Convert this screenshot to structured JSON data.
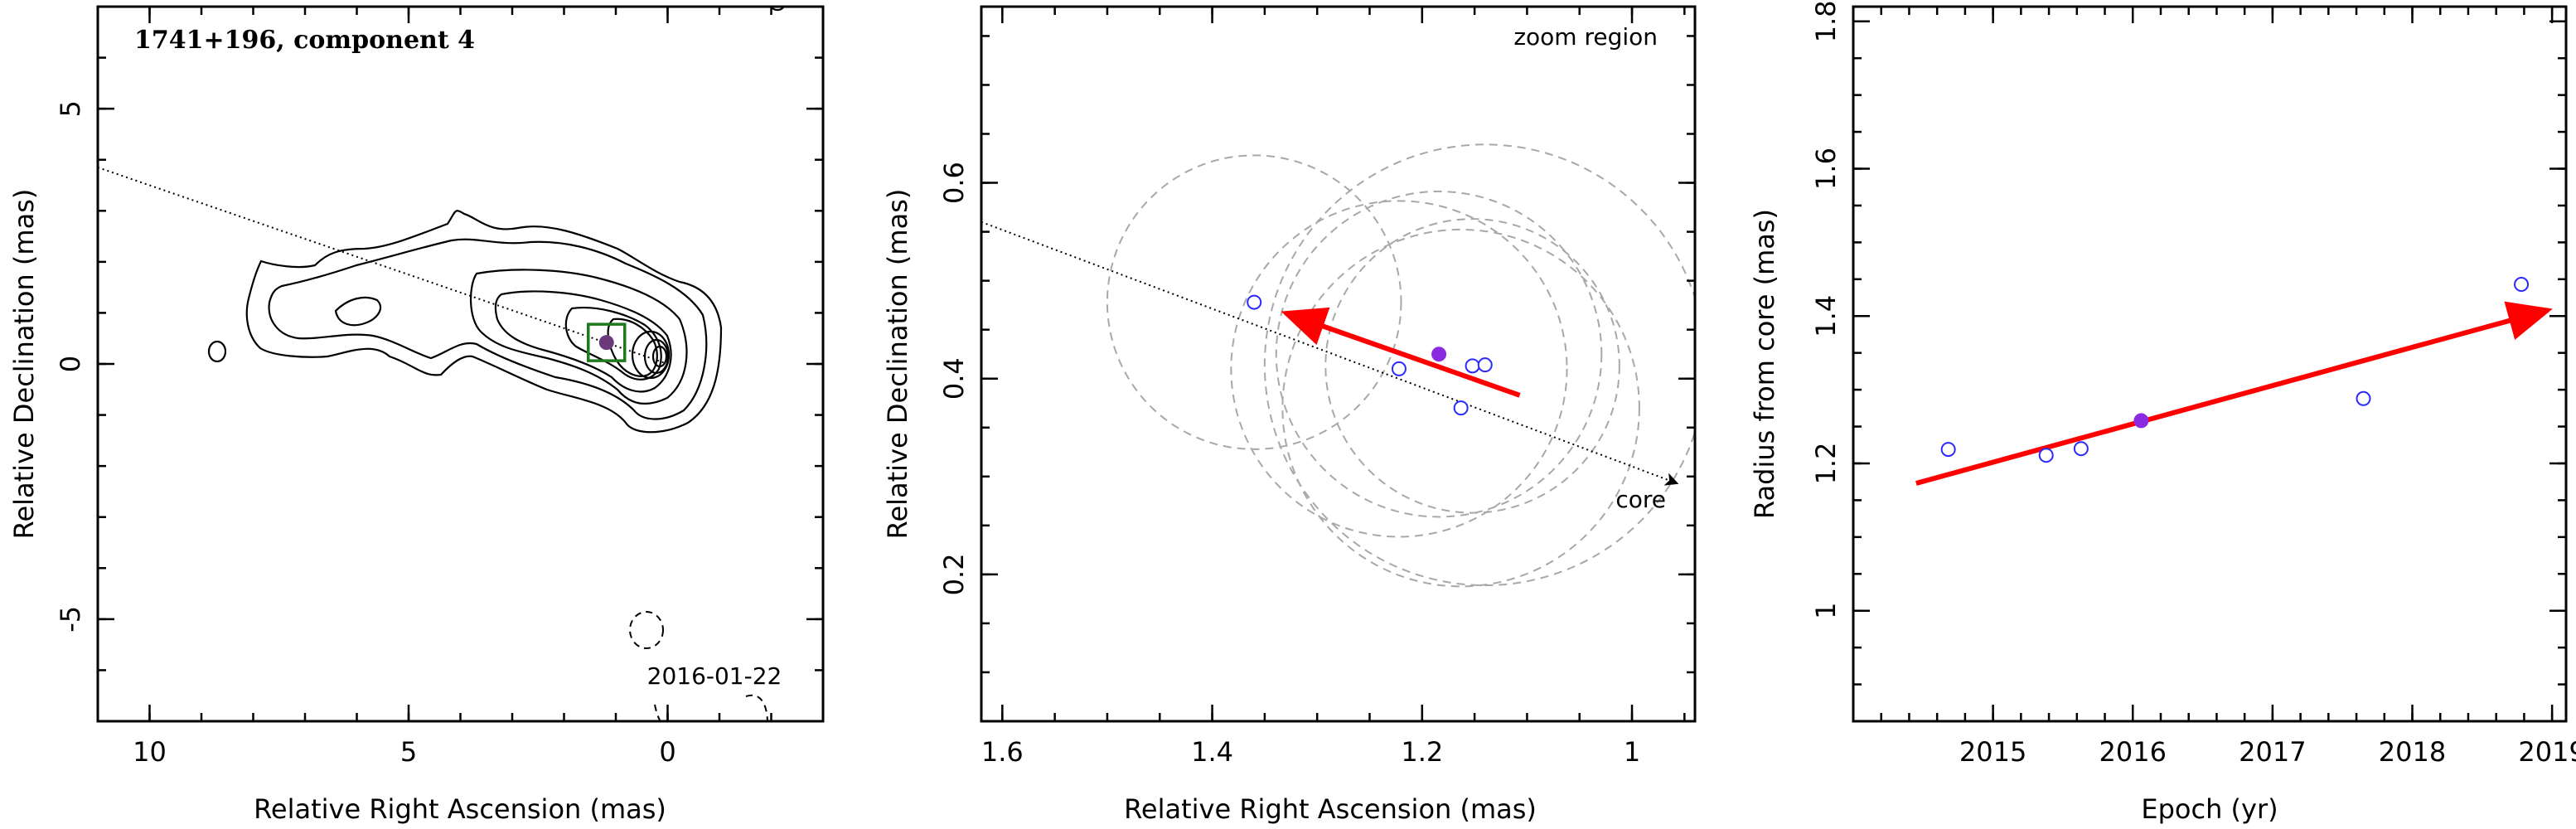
{
  "chart_data": [
    {
      "type": "contour",
      "title": "1741+196, component 4",
      "xlabel": "Relative Right Ascension (mas)",
      "ylabel": "Relative Declination (mas)",
      "xlim": [
        11.0,
        -3.0
      ],
      "ylim": [
        -7.0,
        7.0
      ],
      "x_ticks": [
        10,
        5,
        0
      ],
      "y_ticks": [
        5,
        0,
        -5
      ],
      "epoch_label": "2016-01-22",
      "component_position": {
        "x": 1.18,
        "y": 0.42
      },
      "ridge_line": {
        "x": [
          11.0,
          0.0
        ],
        "y": [
          3.85,
          0.0
        ]
      },
      "contours": [
        {
          "kind": "negative",
          "cx": -0.1,
          "cy": 0.0,
          "rx": 0.7,
          "ry": 0.6
        },
        {
          "kind": "positive",
          "cx": -0.1,
          "cy": 0.0,
          "rx": 0.35,
          "ry": 0.3
        }
      ]
    },
    {
      "type": "scatter",
      "annotation_top": "zoom region",
      "annotation_core": "core",
      "xlabel": "Relative Right Ascension (mas)",
      "ylabel": "Relative Declination (mas)",
      "xlim": [
        1.62,
        0.94
      ],
      "ylim": [
        0.05,
        0.78
      ],
      "x_ticks": [
        1.6,
        1.4,
        1.2,
        1.0
      ],
      "x_tick_labels": [
        "1.6",
        "1.4",
        "1.2",
        "1"
      ],
      "y_ticks": [
        0.6,
        0.4,
        0.2
      ],
      "y_tick_labels": [
        "0.6",
        "0.4",
        "0.2"
      ],
      "points_open": [
        {
          "x": 1.36,
          "y": 0.478
        },
        {
          "x": 1.222,
          "y": 0.41
        },
        {
          "x": 1.152,
          "y": 0.413
        },
        {
          "x": 1.14,
          "y": 0.414
        },
        {
          "x": 1.163,
          "y": 0.37
        }
      ],
      "point_filled": {
        "x": 1.184,
        "y": 0.425
      },
      "error_circles": [
        {
          "x": 1.36,
          "y": 0.478,
          "r": 0.14
        },
        {
          "x": 1.222,
          "y": 0.41,
          "r": 0.16
        },
        {
          "x": 1.152,
          "y": 0.413,
          "r": 0.14
        },
        {
          "x": 1.14,
          "y": 0.414,
          "r": 0.21
        },
        {
          "x": 1.163,
          "y": 0.37,
          "r": 0.17
        },
        {
          "x": 1.184,
          "y": 0.425,
          "r": 0.155
        }
      ],
      "ridge_line": {
        "x": [
          1.62,
          0.957
        ],
        "y": [
          0.56,
          0.293
        ]
      },
      "motion_arrow": {
        "x_start": 1.107,
        "y_start": 0.383,
        "x_end": 1.33,
        "y_end": 0.467
      }
    },
    {
      "type": "scatter",
      "xlabel": "Epoch (yr)",
      "ylabel": "Radius from core (mas)",
      "xlim": [
        2014.0,
        2019.1
      ],
      "ylim": [
        0.85,
        1.82
      ],
      "x_ticks": [
        2015,
        2016,
        2017,
        2018,
        2019
      ],
      "y_ticks": [
        1.0,
        1.2,
        1.4,
        1.6,
        1.8
      ],
      "y_tick_labels": [
        "1",
        "1.2",
        "1.4",
        "1.6",
        "1.8"
      ],
      "points_open": [
        {
          "x": 2014.68,
          "y": 1.219
        },
        {
          "x": 2015.38,
          "y": 1.211
        },
        {
          "x": 2015.63,
          "y": 1.22
        },
        {
          "x": 2017.65,
          "y": 1.288
        },
        {
          "x": 2018.78,
          "y": 1.443
        }
      ],
      "point_filled": {
        "x": 2016.06,
        "y": 1.258
      },
      "fit_arrow": {
        "x_start": 2014.45,
        "y_start": 1.173,
        "x_end": 2018.97,
        "y_end": 1.408
      }
    }
  ]
}
